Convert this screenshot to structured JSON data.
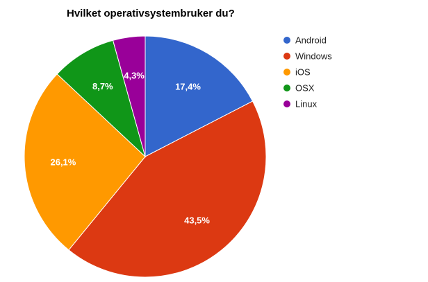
{
  "chart_data": {
    "type": "pie",
    "title": "Hvilket operativsystembruker du?",
    "legend_position": "right",
    "start_angle_deg": 0,
    "direction": "clockwise",
    "slices": [
      {
        "label": "Android",
        "value": 17.4,
        "value_label": "17,4%",
        "color": "#3366cc"
      },
      {
        "label": "Windows",
        "value": 43.5,
        "value_label": "43,5%",
        "color": "#dc3912"
      },
      {
        "label": "iOS",
        "value": 26.1,
        "value_label": "26,1%",
        "color": "#ff9900"
      },
      {
        "label": "OSX",
        "value": 8.7,
        "value_label": "8,7%",
        "color": "#109618"
      },
      {
        "label": "Linux",
        "value": 4.3,
        "value_label": "4,3%",
        "color": "#990099"
      }
    ]
  }
}
